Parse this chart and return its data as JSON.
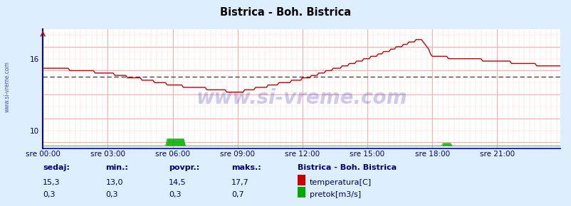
{
  "title": "Bistrica - Boh. Bistrica",
  "bg_color": "#ddeeff",
  "plot_bg_color": "#ffffff",
  "x_labels": [
    "sre 00:00",
    "sre 03:00",
    "sre 06:00",
    "sre 09:00",
    "sre 12:00",
    "sre 15:00",
    "sre 18:00",
    "sre 21:00"
  ],
  "x_ticks_idx": [
    0,
    36,
    72,
    108,
    144,
    180,
    216,
    252
  ],
  "y_ticks": [
    10,
    16
  ],
  "xlim": [
    0,
    287
  ],
  "ylim": [
    8.5,
    18.5
  ],
  "temp_color": "#cc0000",
  "pretok_color": "#00aa00",
  "avg_value": 14.5,
  "avg_color": "#cc0000",
  "spine_color": "#0000cc",
  "arrow_color": "#cc0000",
  "watermark": "www.si-vreme.com",
  "watermark_color": "#0000aa",
  "watermark_alpha": 0.2,
  "sidebar_text": "www.si-vreme.com",
  "sidebar_color": "#0000cc",
  "legend_title": "Bistrica - Boh. Bistrica",
  "legend_color": "#000080",
  "stat_headers": [
    "sedaj:",
    "min.:",
    "povpr.:",
    "maks.:"
  ],
  "stat_temp": [
    "15,3",
    "13,0",
    "14,5",
    "17,7"
  ],
  "stat_pretok": [
    "0,3",
    "0,3",
    "0,3",
    "0,7"
  ],
  "n": 288,
  "temp_min": 13.0,
  "temp_max": 17.7,
  "pretok_min": 0.3,
  "pretok_max": 0.7,
  "pretok_scale": 1.5
}
